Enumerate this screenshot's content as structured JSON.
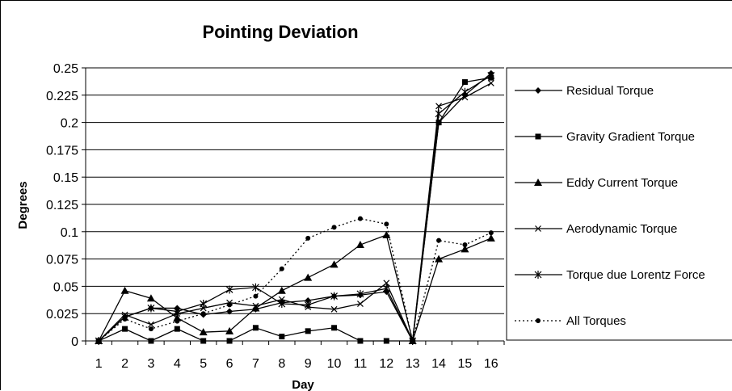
{
  "chart_data": {
    "type": "line",
    "title": "Pointing Deviation",
    "xlabel": "Day",
    "ylabel": "Degrees",
    "x": [
      1,
      2,
      3,
      4,
      5,
      6,
      7,
      8,
      9,
      10,
      11,
      12,
      13,
      14,
      15,
      16
    ],
    "x_tick_labels": [
      "1",
      "2",
      "3",
      "4",
      "5",
      "6",
      "7",
      "8",
      "9",
      "10",
      "11",
      "12",
      "13",
      "14",
      "15",
      "16"
    ],
    "ylim": [
      0,
      0.25
    ],
    "y_ticks": [
      0,
      0.025,
      0.05,
      0.075,
      0.1,
      0.125,
      0.15,
      0.175,
      0.2,
      0.225,
      0.25
    ],
    "y_tick_labels": [
      "0",
      "0.025",
      "0.05",
      "0.075",
      "0.1",
      "0.125",
      "0.15",
      "0.175",
      "0.2",
      "0.225",
      "0.25"
    ],
    "grid": "horizontal",
    "legend_position": "right",
    "series": [
      {
        "name": "Residual Torque",
        "marker": "diamond",
        "dash": "solid",
        "values": [
          0,
          0.022,
          0.03,
          0.03,
          0.024,
          0.027,
          0.029,
          0.035,
          0.037,
          0.041,
          0.042,
          0.045,
          0,
          0.2,
          0.225,
          0.245
        ]
      },
      {
        "name": "Gravity Gradient Torque",
        "marker": "square",
        "dash": "solid",
        "values": [
          0,
          0.011,
          0,
          0.011,
          0,
          0,
          0.012,
          0.004,
          0.009,
          0.012,
          0,
          0,
          0,
          0.2,
          0.237,
          0.241
        ]
      },
      {
        "name": "Eddy Current Torque",
        "marker": "triangle",
        "dash": "solid",
        "values": [
          0,
          0.046,
          0.039,
          0.021,
          0.008,
          0.009,
          0.03,
          0.046,
          0.058,
          0.07,
          0.088,
          0.097,
          0,
          0.075,
          0.084,
          0.094
        ]
      },
      {
        "name": "Aerodynamic Torque",
        "marker": "x",
        "dash": "solid",
        "values": [
          0,
          0.024,
          0.015,
          0.025,
          0.03,
          0.035,
          0.032,
          0.038,
          0.031,
          0.029,
          0.034,
          0.053,
          0,
          0.215,
          0.223,
          0.236
        ]
      },
      {
        "name": "Torque due Lorentz Force",
        "marker": "star",
        "dash": "solid",
        "values": [
          0,
          0.022,
          0.03,
          0.027,
          0.034,
          0.047,
          0.049,
          0.034,
          0.033,
          0.041,
          0.043,
          0.048,
          0,
          0.208,
          0.228,
          0.243
        ]
      },
      {
        "name": "All Torques",
        "marker": "circle",
        "dash": "dotted",
        "values": [
          0,
          0.02,
          0.011,
          0.018,
          0.025,
          0.033,
          0.041,
          0.066,
          0.094,
          0.104,
          0.112,
          0.107,
          0,
          0.092,
          0.088,
          0.099
        ]
      }
    ]
  }
}
